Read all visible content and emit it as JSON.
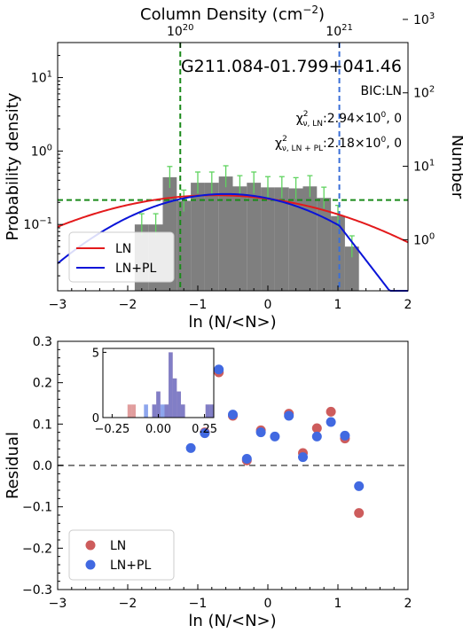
{
  "chart_data": [
    {
      "type": "bar",
      "panel": "top",
      "title": "G211.084-01.799+041.46",
      "xlabel": "ln (N/<N>)",
      "ylabel": "Probability density",
      "ylabel_right": "Number",
      "xlabel_top": "Column Density (cm",
      "xlabel_top_sup": "−2",
      "xlabel_top_close": ")",
      "xlim": [
        -3,
        2
      ],
      "ylim_log": [
        0.0125,
        30
      ],
      "log_y": true,
      "x_ticks": [
        "−3",
        "−2",
        "−1",
        "0",
        "1",
        "2"
      ],
      "y_ticks": [
        {
          "value": 0.1,
          "base": "10",
          "exp": "−1"
        },
        {
          "value": 1,
          "base": "10",
          "exp": "0"
        },
        {
          "value": 10,
          "base": "10",
          "exp": "1"
        }
      ],
      "y_right_ticks": [
        {
          "value": 0.062,
          "base": "10",
          "exp": "0"
        },
        {
          "value": 0.62,
          "base": "10",
          "exp": "1"
        },
        {
          "value": 6.2,
          "base": "10",
          "exp": "2"
        },
        {
          "value": 62,
          "base": "10",
          "exp": "3"
        }
      ],
      "x_top_ticks": [
        {
          "x": -1.25,
          "base": "10",
          "exp": "20"
        },
        {
          "x": 1.02,
          "base": "10",
          "exp": "21"
        }
      ],
      "annotations": {
        "bic": "BIC:LN",
        "chi_ln_label": "χ",
        "chi_ln_sub": "ν, LN",
        "chi_ln_value": ":2.94×10",
        "chi_ln_exp": "0",
        "chi_ln_tail": ", 0",
        "chi_lnpl_label": "χ",
        "chi_lnpl_sub": "ν, LN + PL",
        "chi_lnpl_value": ":2.18×10",
        "chi_lnpl_exp": "0",
        "chi_lnpl_tail": ", 0"
      },
      "histogram": {
        "bin_width": 0.2,
        "bins": [
          {
            "x": -2.0,
            "y": 0.0125
          },
          {
            "x": -1.8,
            "y": 0.1
          },
          {
            "x": -1.6,
            "y": 0.1
          },
          {
            "x": -1.4,
            "y": 0.44
          },
          {
            "x": -1.2,
            "y": 0.21
          },
          {
            "x": -1.0,
            "y": 0.37
          },
          {
            "x": -0.8,
            "y": 0.37
          },
          {
            "x": -0.6,
            "y": 0.45
          },
          {
            "x": -0.4,
            "y": 0.33
          },
          {
            "x": -0.2,
            "y": 0.37
          },
          {
            "x": 0.0,
            "y": 0.32
          },
          {
            "x": 0.2,
            "y": 0.32
          },
          {
            "x": 0.4,
            "y": 0.31
          },
          {
            "x": 0.6,
            "y": 0.33
          },
          {
            "x": 0.8,
            "y": 0.23
          },
          {
            "x": 1.0,
            "y": 0.13
          },
          {
            "x": 1.2,
            "y": 0.05
          }
        ]
      },
      "curves": [
        {
          "name": "LN",
          "color": "#e31a1c",
          "peak_x": -0.75,
          "peak_y": 0.25,
          "sigma": 1.6,
          "cutoff": null
        },
        {
          "name": "LN+PL",
          "color": "#0a14d8",
          "peak_x": -0.6,
          "peak_y": 0.26,
          "sigma": 1.15,
          "cutoff": 1.02,
          "pl_slope": -2.85
        }
      ],
      "vlines": [
        {
          "x": -1.25,
          "color": "#1a8a1a",
          "style": "dashed"
        },
        {
          "x": 1.02,
          "color": "#3a6fd8",
          "style": "dashed"
        }
      ],
      "hline": {
        "y": 0.215,
        "color": "#1a8a1a",
        "style": "dashed"
      },
      "legend": {
        "position": "lower-left",
        "entries": [
          {
            "name": "LN",
            "color": "#e31a1c"
          },
          {
            "name": "LN+PL",
            "color": "#0a14d8"
          }
        ]
      }
    },
    {
      "type": "scatter",
      "panel": "bottom",
      "xlabel": "ln (N/<N>)",
      "ylabel": "Residual",
      "xlim": [
        -3,
        2
      ],
      "ylim": [
        -0.3,
        0.3
      ],
      "x_ticks": [
        "−3",
        "−2",
        "−1",
        "0",
        "1",
        "2"
      ],
      "y_ticks": [
        "−0.3",
        "−0.2",
        "−0.1",
        "0.0",
        "0.1",
        "0.2",
        "0.3"
      ],
      "zero_line": true,
      "series": [
        {
          "name": "LN",
          "color": "#cd5c5c",
          "points": [
            [
              -0.9,
              0.08
            ],
            [
              -0.7,
              0.225
            ],
            [
              -0.5,
              0.12
            ],
            [
              -0.3,
              0.012
            ],
            [
              -0.1,
              0.085
            ],
            [
              0.3,
              0.125
            ],
            [
              0.5,
              0.03
            ],
            [
              0.7,
              0.09
            ],
            [
              0.9,
              0.13
            ],
            [
              1.1,
              0.065
            ],
            [
              1.3,
              -0.115
            ]
          ]
        },
        {
          "name": "LN+PL",
          "color": "#4169e1",
          "points": [
            [
              -1.1,
              0.042
            ],
            [
              -0.9,
              0.078
            ],
            [
              -0.7,
              0.232
            ],
            [
              -0.5,
              0.123
            ],
            [
              -0.3,
              0.016
            ],
            [
              -0.1,
              0.08
            ],
            [
              0.1,
              0.07
            ],
            [
              0.3,
              0.12
            ],
            [
              0.5,
              0.02
            ],
            [
              0.7,
              0.07
            ],
            [
              0.9,
              0.105
            ],
            [
              1.1,
              0.072
            ],
            [
              1.3,
              -0.05
            ]
          ]
        }
      ],
      "inset": {
        "xlim": [
          -0.3,
          0.3
        ],
        "ylim": [
          0,
          5.3
        ],
        "x_ticks": [
          "−0.25",
          "0.00",
          "0.25"
        ],
        "y_ticks": [
          "0",
          "5"
        ],
        "ln_hist": [
          0,
          0,
          0,
          0,
          0,
          0,
          1,
          1,
          0,
          0,
          0,
          0,
          1,
          2,
          0,
          1,
          5,
          3,
          2,
          1,
          0,
          0,
          0,
          0,
          0,
          1,
          1
        ],
        "lnpl_hist": [
          0,
          0,
          0,
          0,
          0,
          0,
          0,
          0,
          0,
          0,
          1,
          0,
          1,
          2,
          1,
          1,
          5,
          3,
          2,
          1,
          0,
          0,
          0,
          0,
          0,
          1,
          1
        ]
      },
      "legend": {
        "position": "lower-left",
        "entries": [
          {
            "name": "LN",
            "color": "#cd5c5c"
          },
          {
            "name": "LN+PL",
            "color": "#4169e1"
          }
        ]
      }
    }
  ]
}
